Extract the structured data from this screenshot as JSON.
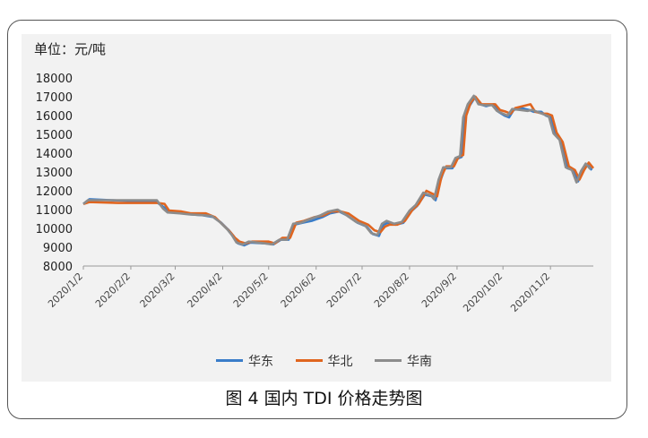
{
  "chart_data": {
    "type": "line",
    "unit_label": "单位：元/吨",
    "caption": "图 4  国内 TDI 价格走势图",
    "ylim": [
      8000,
      18000
    ],
    "yticks": [
      8000,
      9000,
      10000,
      11000,
      12000,
      13000,
      14000,
      15000,
      16000,
      17000,
      18000
    ],
    "xlim": [
      "2020-01-02",
      "2020-11-30"
    ],
    "xticks": [
      {
        "date": "2020-01-02",
        "label": "2020/1/2"
      },
      {
        "date": "2020-02-02",
        "label": "2020/2/2"
      },
      {
        "date": "2020-03-02",
        "label": "2020/3/2"
      },
      {
        "date": "2020-04-02",
        "label": "2020/4/2"
      },
      {
        "date": "2020-05-02",
        "label": "2020/5/2"
      },
      {
        "date": "2020-06-02",
        "label": "2020/6/2"
      },
      {
        "date": "2020-07-02",
        "label": "2020/7/2"
      },
      {
        "date": "2020-08-02",
        "label": "2020/8/2"
      },
      {
        "date": "2020-09-02",
        "label": "2020/9/2"
      },
      {
        "date": "2020-10-02",
        "label": "2020/10/2"
      },
      {
        "date": "2020-11-02",
        "label": "2020/11/2"
      }
    ],
    "grid": false,
    "legend_position": "bottom",
    "series": [
      {
        "name": "华东",
        "color": "#3a7dc9",
        "points": [
          [
            "2020-01-02",
            11300
          ],
          [
            "2020-01-06",
            11550
          ],
          [
            "2020-01-20",
            11500
          ],
          [
            "2020-02-05",
            11450
          ],
          [
            "2020-02-18",
            11450
          ],
          [
            "2020-02-24",
            11100
          ],
          [
            "2020-02-27",
            10900
          ],
          [
            "2020-03-06",
            10850
          ],
          [
            "2020-03-12",
            10750
          ],
          [
            "2020-03-20",
            10700
          ],
          [
            "2020-03-27",
            10600
          ],
          [
            "2020-04-01",
            10300
          ],
          [
            "2020-04-06",
            9900
          ],
          [
            "2020-04-09",
            9600
          ],
          [
            "2020-04-12",
            9200
          ],
          [
            "2020-04-16",
            9100
          ],
          [
            "2020-04-20",
            9250
          ],
          [
            "2020-05-01",
            9200
          ],
          [
            "2020-05-05",
            9150
          ],
          [
            "2020-05-10",
            9400
          ],
          [
            "2020-05-15",
            9400
          ],
          [
            "2020-05-19",
            10200
          ],
          [
            "2020-05-24",
            10300
          ],
          [
            "2020-05-30",
            10400
          ],
          [
            "2020-06-06",
            10600
          ],
          [
            "2020-06-11",
            10800
          ],
          [
            "2020-06-17",
            10900
          ],
          [
            "2020-06-22",
            10700
          ],
          [
            "2020-06-29",
            10300
          ],
          [
            "2020-07-05",
            10100
          ],
          [
            "2020-07-09",
            9700
          ],
          [
            "2020-07-13",
            9600
          ],
          [
            "2020-07-16",
            10200
          ],
          [
            "2020-07-19",
            10300
          ],
          [
            "2020-07-24",
            10200
          ],
          [
            "2020-07-29",
            10300
          ],
          [
            "2020-08-03",
            10900
          ],
          [
            "2020-08-07",
            11200
          ],
          [
            "2020-08-12",
            11800
          ],
          [
            "2020-08-17",
            11700
          ],
          [
            "2020-08-19",
            11500
          ],
          [
            "2020-08-22",
            12500
          ],
          [
            "2020-08-25",
            13200
          ],
          [
            "2020-08-30",
            13200
          ],
          [
            "2020-09-02",
            13700
          ],
          [
            "2020-09-05",
            13800
          ],
          [
            "2020-09-07",
            15800
          ],
          [
            "2020-09-10",
            16500
          ],
          [
            "2020-09-14",
            17000
          ],
          [
            "2020-09-17",
            16600
          ],
          [
            "2020-09-21",
            16500
          ],
          [
            "2020-09-26",
            16600
          ],
          [
            "2020-09-29",
            16200
          ],
          [
            "2020-10-03",
            16000
          ],
          [
            "2020-10-06",
            15900
          ],
          [
            "2020-10-09",
            16300
          ],
          [
            "2020-10-14",
            16400
          ],
          [
            "2020-10-19",
            16300
          ],
          [
            "2020-10-22",
            16200
          ],
          [
            "2020-10-27",
            16200
          ],
          [
            "2020-10-30",
            16000
          ],
          [
            "2020-11-02",
            15900
          ],
          [
            "2020-11-05",
            15000
          ],
          [
            "2020-11-09",
            14700
          ],
          [
            "2020-11-13",
            13200
          ],
          [
            "2020-11-17",
            13100
          ],
          [
            "2020-11-20",
            12500
          ],
          [
            "2020-11-23",
            13000
          ],
          [
            "2020-11-26",
            13400
          ],
          [
            "2020-11-29",
            13100
          ]
        ]
      },
      {
        "name": "华北",
        "color": "#e0651f",
        "points": [
          [
            "2020-01-02",
            11300
          ],
          [
            "2020-01-06",
            11400
          ],
          [
            "2020-01-25",
            11350
          ],
          [
            "2020-02-10",
            11350
          ],
          [
            "2020-02-20",
            11350
          ],
          [
            "2020-02-24",
            11300
          ],
          [
            "2020-02-27",
            10950
          ],
          [
            "2020-03-06",
            10900
          ],
          [
            "2020-03-12",
            10800
          ],
          [
            "2020-03-22",
            10800
          ],
          [
            "2020-03-28",
            10600
          ],
          [
            "2020-04-02",
            10200
          ],
          [
            "2020-04-07",
            9800
          ],
          [
            "2020-04-10",
            9500
          ],
          [
            "2020-04-13",
            9300
          ],
          [
            "2020-04-17",
            9200
          ],
          [
            "2020-04-21",
            9300
          ],
          [
            "2020-05-02",
            9300
          ],
          [
            "2020-05-06",
            9200
          ],
          [
            "2020-05-11",
            9500
          ],
          [
            "2020-05-16",
            9500
          ],
          [
            "2020-05-20",
            10300
          ],
          [
            "2020-05-25",
            10400
          ],
          [
            "2020-06-01",
            10600
          ],
          [
            "2020-06-07",
            10700
          ],
          [
            "2020-06-12",
            10900
          ],
          [
            "2020-06-18",
            10900
          ],
          [
            "2020-06-23",
            10800
          ],
          [
            "2020-06-30",
            10400
          ],
          [
            "2020-07-06",
            10200
          ],
          [
            "2020-07-10",
            9900
          ],
          [
            "2020-07-14",
            9800
          ],
          [
            "2020-07-17",
            10100
          ],
          [
            "2020-07-20",
            10200
          ],
          [
            "2020-07-25",
            10200
          ],
          [
            "2020-07-30",
            10400
          ],
          [
            "2020-08-04",
            11000
          ],
          [
            "2020-08-08",
            11300
          ],
          [
            "2020-08-13",
            12000
          ],
          [
            "2020-08-18",
            11800
          ],
          [
            "2020-08-20",
            11700
          ],
          [
            "2020-08-23",
            12800
          ],
          [
            "2020-08-26",
            13300
          ],
          [
            "2020-08-31",
            13300
          ],
          [
            "2020-09-03",
            13800
          ],
          [
            "2020-09-06",
            13900
          ],
          [
            "2020-09-08",
            16000
          ],
          [
            "2020-09-11",
            16700
          ],
          [
            "2020-09-14",
            17000
          ],
          [
            "2020-09-18",
            16600
          ],
          [
            "2020-09-22",
            16600
          ],
          [
            "2020-09-27",
            16600
          ],
          [
            "2020-09-30",
            16300
          ],
          [
            "2020-10-04",
            16200
          ],
          [
            "2020-10-07",
            16100
          ],
          [
            "2020-10-10",
            16400
          ],
          [
            "2020-10-15",
            16500
          ],
          [
            "2020-10-20",
            16600
          ],
          [
            "2020-10-23",
            16200
          ],
          [
            "2020-10-28",
            16100
          ],
          [
            "2020-10-31",
            16100
          ],
          [
            "2020-11-03",
            16000
          ],
          [
            "2020-11-06",
            15100
          ],
          [
            "2020-11-10",
            14600
          ],
          [
            "2020-11-14",
            13300
          ],
          [
            "2020-11-18",
            13100
          ],
          [
            "2020-11-21",
            12600
          ],
          [
            "2020-11-24",
            13100
          ],
          [
            "2020-11-27",
            13500
          ],
          [
            "2020-11-30",
            13200
          ]
        ]
      },
      {
        "name": "华南",
        "color": "#8c8c8c",
        "points": [
          [
            "2020-01-02",
            11300
          ],
          [
            "2020-01-05",
            11500
          ],
          [
            "2020-01-22",
            11500
          ],
          [
            "2020-02-06",
            11500
          ],
          [
            "2020-02-19",
            11500
          ],
          [
            "2020-02-23",
            11050
          ],
          [
            "2020-02-26",
            10850
          ],
          [
            "2020-03-05",
            10800
          ],
          [
            "2020-03-11",
            10750
          ],
          [
            "2020-03-21",
            10700
          ],
          [
            "2020-03-26",
            10650
          ],
          [
            "2020-03-31",
            10350
          ],
          [
            "2020-04-05",
            9950
          ],
          [
            "2020-04-08",
            9650
          ],
          [
            "2020-04-11",
            9250
          ],
          [
            "2020-04-15",
            9150
          ],
          [
            "2020-04-19",
            9300
          ],
          [
            "2020-04-30",
            9200
          ],
          [
            "2020-05-04",
            9150
          ],
          [
            "2020-05-09",
            9400
          ],
          [
            "2020-05-14",
            9400
          ],
          [
            "2020-05-18",
            10250
          ],
          [
            "2020-05-23",
            10300
          ],
          [
            "2020-05-29",
            10500
          ],
          [
            "2020-06-05",
            10700
          ],
          [
            "2020-06-10",
            10900
          ],
          [
            "2020-06-16",
            11000
          ],
          [
            "2020-06-21",
            10750
          ],
          [
            "2020-06-28",
            10350
          ],
          [
            "2020-07-04",
            10150
          ],
          [
            "2020-07-08",
            9750
          ],
          [
            "2020-07-12",
            9650
          ],
          [
            "2020-07-15",
            10250
          ],
          [
            "2020-07-18",
            10400
          ],
          [
            "2020-07-23",
            10250
          ],
          [
            "2020-07-28",
            10350
          ],
          [
            "2020-08-02",
            10950
          ],
          [
            "2020-08-06",
            11250
          ],
          [
            "2020-08-11",
            11900
          ],
          [
            "2020-08-16",
            11750
          ],
          [
            "2020-08-18",
            11550
          ],
          [
            "2020-08-21",
            12600
          ],
          [
            "2020-08-24",
            13250
          ],
          [
            "2020-08-29",
            13250
          ],
          [
            "2020-09-01",
            13750
          ],
          [
            "2020-09-04",
            13850
          ],
          [
            "2020-09-06",
            15900
          ],
          [
            "2020-09-09",
            16600
          ],
          [
            "2020-09-13",
            17050
          ],
          [
            "2020-09-16",
            16600
          ],
          [
            "2020-09-20",
            16550
          ],
          [
            "2020-09-25",
            16550
          ],
          [
            "2020-09-28",
            16250
          ],
          [
            "2020-10-02",
            16100
          ],
          [
            "2020-10-05",
            16000
          ],
          [
            "2020-10-08",
            16350
          ],
          [
            "2020-10-13",
            16300
          ],
          [
            "2020-10-18",
            16250
          ],
          [
            "2020-10-21",
            16300
          ],
          [
            "2020-10-26",
            16150
          ],
          [
            "2020-10-29",
            16050
          ],
          [
            "2020-11-01",
            15950
          ],
          [
            "2020-11-04",
            15050
          ],
          [
            "2020-11-08",
            14700
          ],
          [
            "2020-11-12",
            13250
          ],
          [
            "2020-11-16",
            13100
          ],
          [
            "2020-11-19",
            12450
          ],
          [
            "2020-11-22",
            13050
          ],
          [
            "2020-11-25",
            13450
          ],
          [
            "2020-11-28",
            13150
          ]
        ]
      }
    ]
  }
}
